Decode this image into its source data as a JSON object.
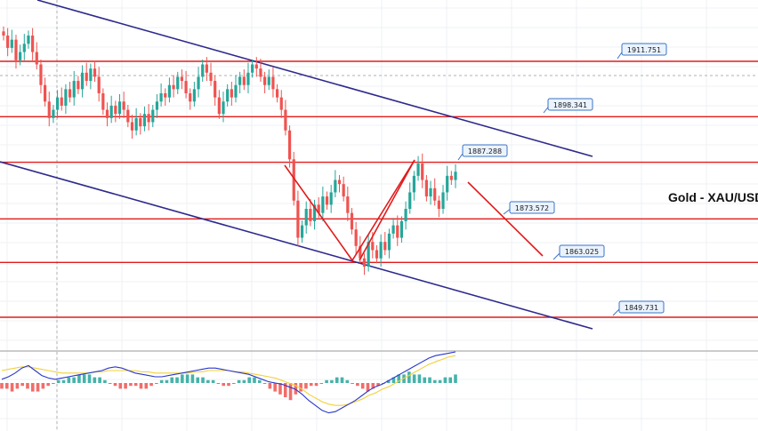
{
  "chart_data": {
    "type": "candlestick",
    "title": "Gold - XAU/USD",
    "price_range": [
      1840,
      1925
    ],
    "levels": [
      {
        "price": 1911.751,
        "label": "1911.751"
      },
      {
        "price": 1898.341,
        "label": "1898.341"
      },
      {
        "price": 1887.288,
        "label": "1887.288"
      },
      {
        "price": 1873.572,
        "label": "1873.572"
      },
      {
        "price": 1863.025,
        "label": "1863.025"
      },
      {
        "price": 1849.731,
        "label": "1849.731"
      }
    ],
    "candles_close": [
      1918,
      1915,
      1917,
      1912,
      1914,
      1916,
      1918,
      1914,
      1911,
      1906,
      1902,
      1898,
      1900,
      1903,
      1901,
      1905,
      1903,
      1907,
      1905,
      1909,
      1907,
      1910,
      1908,
      1904,
      1900,
      1898,
      1901,
      1899,
      1902,
      1900,
      1897,
      1895,
      1898,
      1896,
      1899,
      1897,
      1900,
      1902,
      1904,
      1903,
      1906,
      1905,
      1908,
      1907,
      1904,
      1902,
      1905,
      1908,
      1911,
      1909,
      1907,
      1903,
      1899,
      1902,
      1905,
      1903,
      1906,
      1908,
      1906,
      1909,
      1911,
      1910,
      1908,
      1906,
      1908,
      1905,
      1903,
      1900,
      1895,
      1888,
      1878,
      1869,
      1872,
      1876,
      1873,
      1877,
      1875,
      1879,
      1877,
      1880,
      1883,
      1882,
      1879,
      1875,
      1871,
      1867,
      1864,
      1862,
      1868,
      1866,
      1864,
      1868,
      1866,
      1870,
      1872,
      1869,
      1873,
      1876,
      1880,
      1884,
      1887,
      1883,
      1879,
      1881,
      1878,
      1876,
      1880,
      1884,
      1883,
      1885
    ],
    "macd_histogram": [
      -2,
      -2,
      -3,
      -2,
      -1,
      -2,
      -3,
      -3,
      -2,
      -1,
      0,
      1,
      1,
      2,
      2,
      3,
      3,
      3,
      2,
      2,
      1,
      0,
      -1,
      -2,
      -2,
      -1,
      -1,
      -2,
      -2,
      -1,
      0,
      1,
      1,
      2,
      2,
      3,
      3,
      3,
      2,
      2,
      1,
      1,
      0,
      -1,
      -1,
      0,
      1,
      1,
      2,
      2,
      1,
      0,
      -2,
      -3,
      -4,
      -5,
      -6,
      -4,
      -3,
      -2,
      -1,
      -1,
      0,
      1,
      1,
      2,
      2,
      1,
      0,
      -1,
      -2,
      -3,
      -2,
      -1,
      0,
      1,
      2,
      3,
      3,
      4,
      3,
      3,
      2,
      2,
      1,
      1,
      2,
      2,
      3
    ],
    "macd_line": [
      3,
      5,
      8,
      12,
      14,
      10,
      6,
      4,
      3,
      4,
      5,
      6,
      7,
      8,
      9,
      10,
      12,
      13,
      12,
      10,
      8,
      7,
      6,
      5,
      5,
      6,
      7,
      8,
      9,
      10,
      11,
      12,
      12,
      11,
      10,
      9,
      8,
      7,
      5,
      3,
      1,
      0,
      -1,
      -3,
      -5,
      -9,
      -14,
      -18,
      -22,
      -24,
      -23,
      -20,
      -17,
      -14,
      -10,
      -6,
      -3,
      -1,
      2,
      5,
      8,
      11,
      14,
      17,
      20,
      22,
      23,
      24,
      25
    ],
    "signal_line": [
      10,
      11,
      12,
      13,
      13,
      12,
      11,
      10,
      9,
      8,
      8,
      8,
      8,
      8,
      9,
      9,
      10,
      10,
      10,
      10,
      10,
      9,
      9,
      8,
      8,
      8,
      8,
      8,
      8,
      9,
      9,
      10,
      10,
      10,
      10,
      9,
      9,
      8,
      7,
      6,
      5,
      4,
      2,
      0,
      -2,
      -5,
      -9,
      -12,
      -15,
      -17,
      -18,
      -18,
      -17,
      -15,
      -13,
      -10,
      -8,
      -5,
      -3,
      0,
      3,
      6,
      9,
      12,
      15,
      17,
      19,
      21,
      22
    ],
    "colors": {
      "level": "#e01c1c",
      "channel": "#2e2a8c",
      "bull": "#26a69a",
      "bear": "#ef5350",
      "label_bg": "#eaf3ff",
      "label_border": "#3b73c4",
      "macd": "#2a37c9",
      "signal": "#f2d13a",
      "hist_pos": "#26a69a",
      "hist_neg": "#ef5350"
    }
  }
}
